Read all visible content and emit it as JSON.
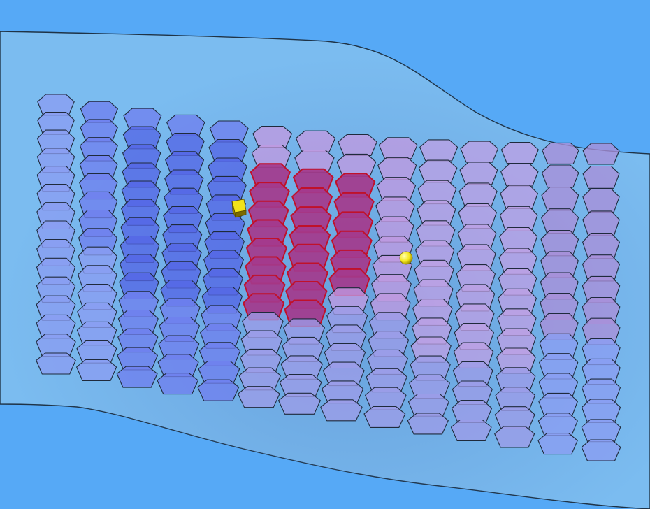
{
  "scene": {
    "background_color": "#56a9f6",
    "surface_color": "#7bbcf0",
    "surface_edge_color": "#1f3346",
    "cell_outline_color": "#1f2a3c",
    "selected_outline_color": "#c0112a"
  },
  "grid": {
    "columns": 14,
    "rows": 15,
    "selected_fill": "#a43a8c",
    "palette": {
      "light_blue": "#8a9ef2",
      "blue": "#6f80ee",
      "dark_blue": "#5566e6",
      "lavender": "#9c9ce8",
      "pink": "#c09ae0",
      "light_pink": "#bca0e4",
      "mauve": "#a98fd8"
    },
    "selected_cells": [
      [
        5,
        2
      ],
      [
        6,
        2
      ],
      [
        7,
        2
      ],
      [
        5,
        3
      ],
      [
        6,
        3
      ],
      [
        7,
        3
      ],
      [
        5,
        4
      ],
      [
        6,
        4
      ],
      [
        7,
        4
      ],
      [
        5,
        5
      ],
      [
        6,
        5
      ],
      [
        7,
        5
      ],
      [
        5,
        6
      ],
      [
        6,
        6
      ],
      [
        7,
        6
      ],
      [
        5,
        7
      ],
      [
        6,
        7
      ],
      [
        7,
        7
      ],
      [
        5,
        8
      ],
      [
        6,
        8
      ],
      [
        5,
        9
      ],
      [
        6,
        9
      ]
    ]
  },
  "gizmos": {
    "move_handle": {
      "label": "cube",
      "color": "#f2e21a"
    },
    "pivot_point": {
      "label": "sphere",
      "color": "#f4e61c"
    }
  }
}
